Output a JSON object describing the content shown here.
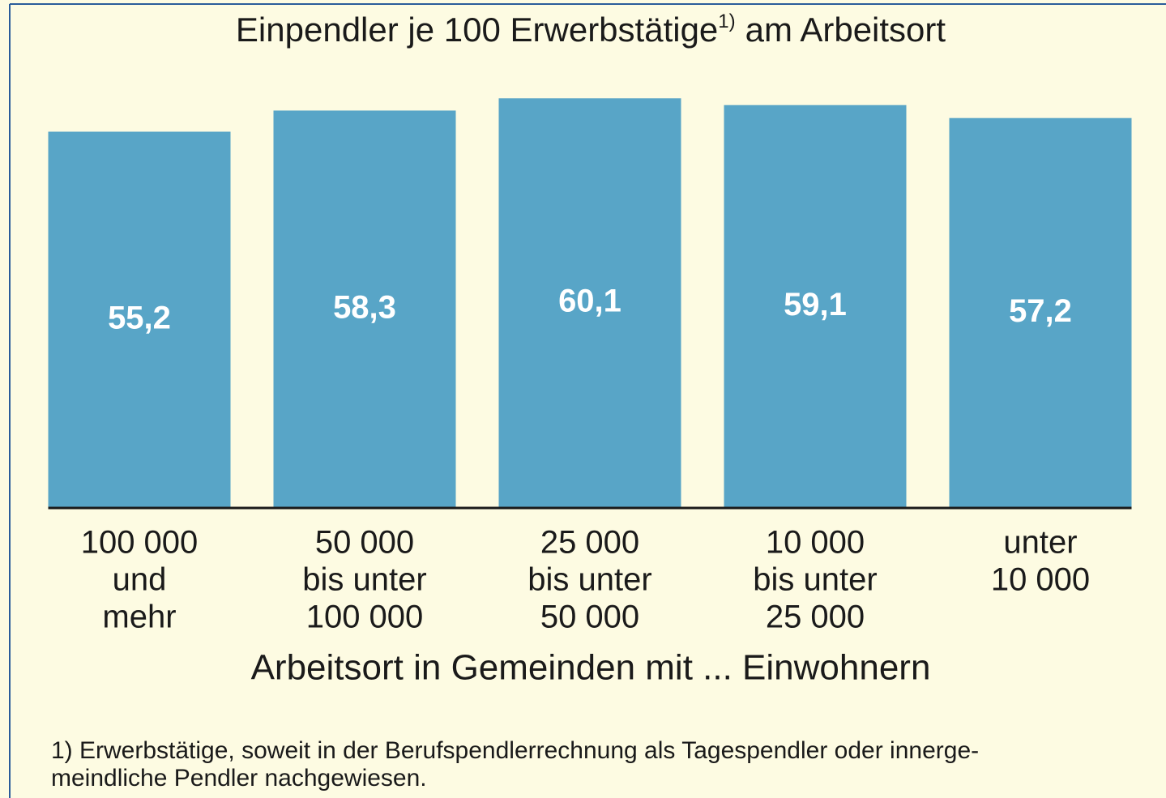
{
  "chart_data": {
    "type": "bar",
    "title": [
      "Einpendler je 100 Erwerbstätige",
      "1)",
      "am Arbeitsort"
    ],
    "categories": [
      [
        "100 000",
        "und",
        "mehr"
      ],
      [
        "50 000",
        "bis unter",
        "100 000"
      ],
      [
        "25 000",
        "bis unter",
        "50 000"
      ],
      [
        "10 000",
        "bis unter",
        "25 000"
      ],
      [
        "unter",
        "10 000"
      ]
    ],
    "values": [
      55.2,
      58.3,
      60.1,
      59.1,
      57.2
    ],
    "value_labels": [
      "55,2",
      "58,3",
      "60,1",
      "59,1",
      "57,2"
    ],
    "color": "#58a5c7",
    "ylim": [
      0,
      70
    ],
    "xlabel": "Arbeitsort in Gemeinden mit ... Einwohnern",
    "footnote": [
      "1) Erwerbstätige, soweit in der Berufspendlerrechnung als Tagespendler oder innerge-",
      "meindliche Pendler nachgewiesen."
    ]
  }
}
